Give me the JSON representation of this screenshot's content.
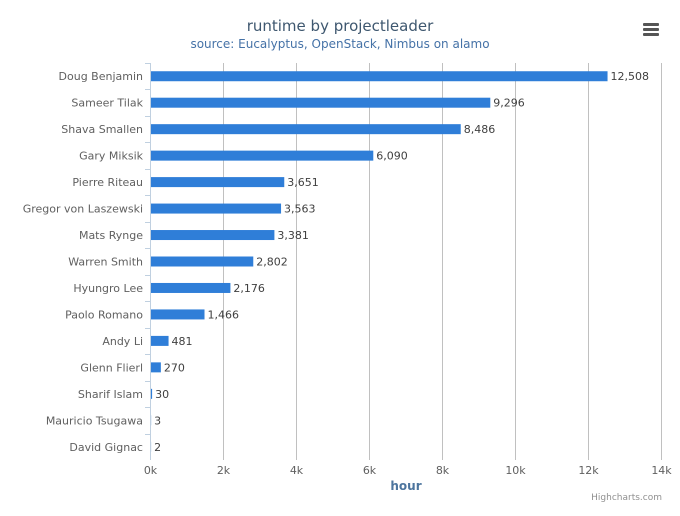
{
  "chart_data": {
    "type": "bar",
    "orientation": "horizontal",
    "title": "runtime by projectleader",
    "subtitle": "source: Eucalyptus, OpenStack, Nimbus on alamo",
    "xlabel": "hour",
    "categories": [
      "Doug Benjamin",
      "Sameer Tilak",
      "Shava Smallen",
      "Gary Miksik",
      "Pierre Riteau",
      "Gregor von Laszewski",
      "Mats Rynge",
      "Warren Smith",
      "Hyungro Lee",
      "Paolo Romano",
      "Andy Li",
      "Glenn Flierl",
      "Sharif Islam",
      "Mauricio Tsugawa",
      "David Gignac"
    ],
    "values": [
      12508,
      9296,
      8486,
      6090,
      3651,
      3563,
      3381,
      2802,
      2176,
      1466,
      481,
      270,
      30,
      3,
      2
    ],
    "data_labels": [
      "12,508",
      "9,296",
      "8,486",
      "6,090",
      "3,651",
      "3,563",
      "3,381",
      "2,802",
      "2,176",
      "1,466",
      "481",
      "270",
      "30",
      "3",
      "2"
    ],
    "xlim": [
      0,
      14000
    ],
    "ticks": [
      0,
      2000,
      4000,
      6000,
      8000,
      10000,
      12000,
      14000
    ],
    "tick_labels": [
      "0k",
      "2k",
      "4k",
      "6k",
      "8k",
      "10k",
      "12k",
      "14k"
    ],
    "grid": true,
    "legend": "none",
    "bar_color": "#2f7ed8"
  },
  "menu": {
    "icon": "hamburger-menu-icon"
  },
  "credits": "Highcharts.com"
}
